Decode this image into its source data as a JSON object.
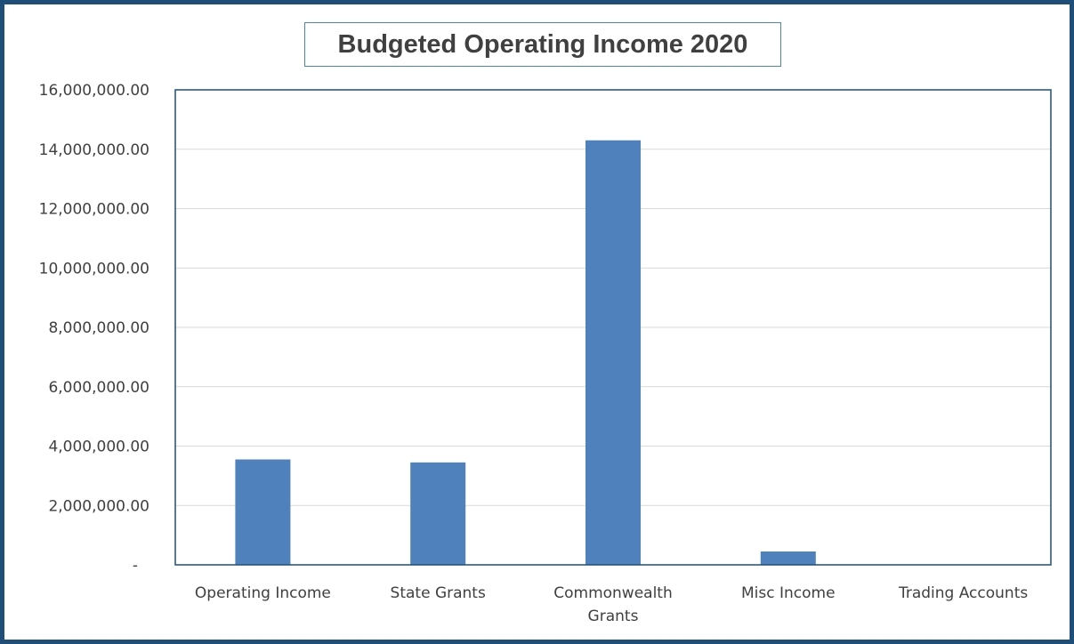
{
  "chart_data": {
    "type": "bar",
    "title": "Budgeted Operating Income 2020",
    "xlabel": "",
    "ylabel": "",
    "categories": [
      "Operating Income",
      "State Grants",
      "Commonwealth Grants",
      "Misc Income",
      "Trading Accounts"
    ],
    "category_lines": [
      [
        "Operating Income"
      ],
      [
        "State Grants"
      ],
      [
        "Commonwealth",
        "Grants"
      ],
      [
        "Misc Income"
      ],
      [
        "Trading Accounts"
      ]
    ],
    "values": [
      3550000,
      3450000,
      14300000,
      450000,
      0
    ],
    "ylim": [
      0,
      16000000
    ],
    "yticks": [
      0,
      2000000,
      4000000,
      6000000,
      8000000,
      10000000,
      12000000,
      14000000,
      16000000
    ],
    "ytick_labels": [
      "-",
      "2,000,000.00",
      "4,000,000.00",
      "6,000,000.00",
      "8,000,000.00",
      "10,000,000.00",
      "12,000,000.00",
      "14,000,000.00",
      "16,000,000.00"
    ],
    "grid": true,
    "bar_color": "#4f81bd",
    "grid_color": "#d9d9d9",
    "border_color": "#1f4e79"
  }
}
